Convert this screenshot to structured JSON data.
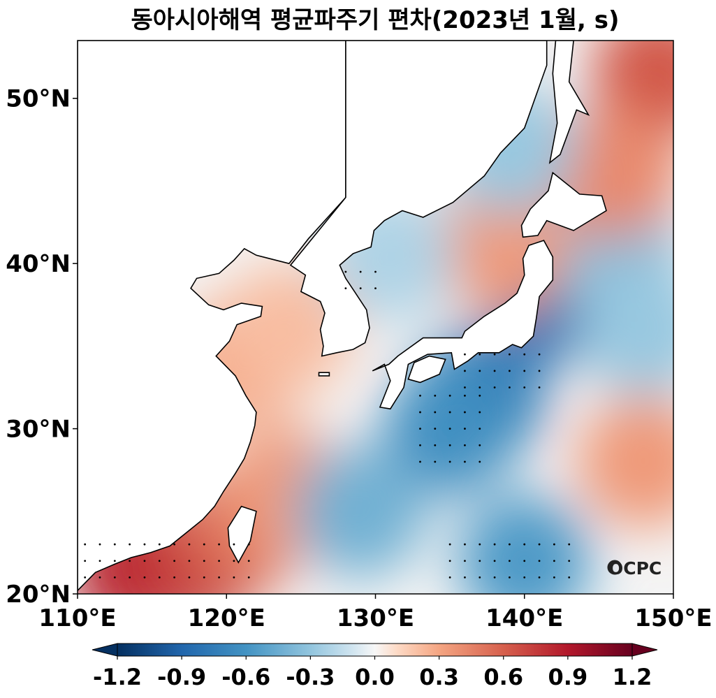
{
  "chart_data": {
    "type": "heatmap",
    "title": "동아시아해역 평균파주기 편차(2023년 1월, s)",
    "projection": "equirectangular map",
    "xlim": [
      110,
      150
    ],
    "ylim": [
      20,
      53.5
    ],
    "x_ticks": [
      110,
      120,
      130,
      140,
      150
    ],
    "x_tick_labels": [
      "110°E",
      "120°E",
      "130°E",
      "140°E",
      "150°E"
    ],
    "y_ticks": [
      20,
      30,
      40,
      50
    ],
    "y_tick_labels": [
      "20°N",
      "30°N",
      "40°N",
      "50°N"
    ],
    "colorbar": {
      "orientation": "horizontal",
      "colormap": "RdBu_r",
      "range": [
        -1.2,
        1.2
      ],
      "extend": "both",
      "ticks": [
        -1.2,
        -0.9,
        -0.6,
        -0.3,
        0.0,
        0.3,
        0.6,
        0.9,
        1.2
      ],
      "tick_labels": [
        "-1.2",
        "-0.9",
        "-0.6",
        "-0.3",
        "0.0",
        "0.3",
        "0.6",
        "0.9",
        "1.2"
      ]
    },
    "anomaly_blobs": [
      {
        "lon": 114,
        "lat": 21.5,
        "value": 0.6
      },
      {
        "lon": 118,
        "lat": 22.0,
        "value": 0.55
      },
      {
        "lon": 121,
        "lat": 24.0,
        "value": 0.4
      },
      {
        "lon": 124,
        "lat": 26.0,
        "value": 0.25
      },
      {
        "lon": 121,
        "lat": 34.0,
        "value": 0.2
      },
      {
        "lon": 124,
        "lat": 36.0,
        "value": 0.15
      },
      {
        "lon": 137,
        "lat": 32.0,
        "value": -0.55
      },
      {
        "lon": 135,
        "lat": 30.0,
        "value": -0.45
      },
      {
        "lon": 142,
        "lat": 38.0,
        "value": -0.6
      },
      {
        "lon": 140,
        "lat": 22.0,
        "value": -0.4
      },
      {
        "lon": 146,
        "lat": 41.0,
        "value": -0.25
      },
      {
        "lon": 148,
        "lat": 36.0,
        "value": -0.2
      },
      {
        "lon": 148,
        "lat": 28.0,
        "value": 0.25
      },
      {
        "lon": 149,
        "lat": 51.5,
        "value": 0.45
      },
      {
        "lon": 146,
        "lat": 45.5,
        "value": 0.3
      },
      {
        "lon": 138.5,
        "lat": 41.0,
        "value": 0.25
      },
      {
        "lon": 131,
        "lat": 40.5,
        "value": -0.15
      },
      {
        "lon": 129,
        "lat": 25.0,
        "value": -0.3
      },
      {
        "lon": 139,
        "lat": 47.0,
        "value": -0.2
      }
    ],
    "stippling": [
      {
        "lon_range": [
          110.5,
          122
        ],
        "lat_range": [
          21,
          23.5
        ],
        "step": 1
      },
      {
        "lon_range": [
          133,
          137
        ],
        "lat_range": [
          28,
          32
        ],
        "step": 1
      },
      {
        "lon_range": [
          136,
          141
        ],
        "lat_range": [
          32.5,
          35
        ],
        "step": 1
      },
      {
        "lon_range": [
          135,
          143
        ],
        "lat_range": [
          21,
          23
        ],
        "step": 1
      },
      {
        "lon_range": [
          128,
          130
        ],
        "lat_range": [
          38.5,
          40
        ],
        "step": 1
      }
    ],
    "logo_text": "OCPC"
  }
}
